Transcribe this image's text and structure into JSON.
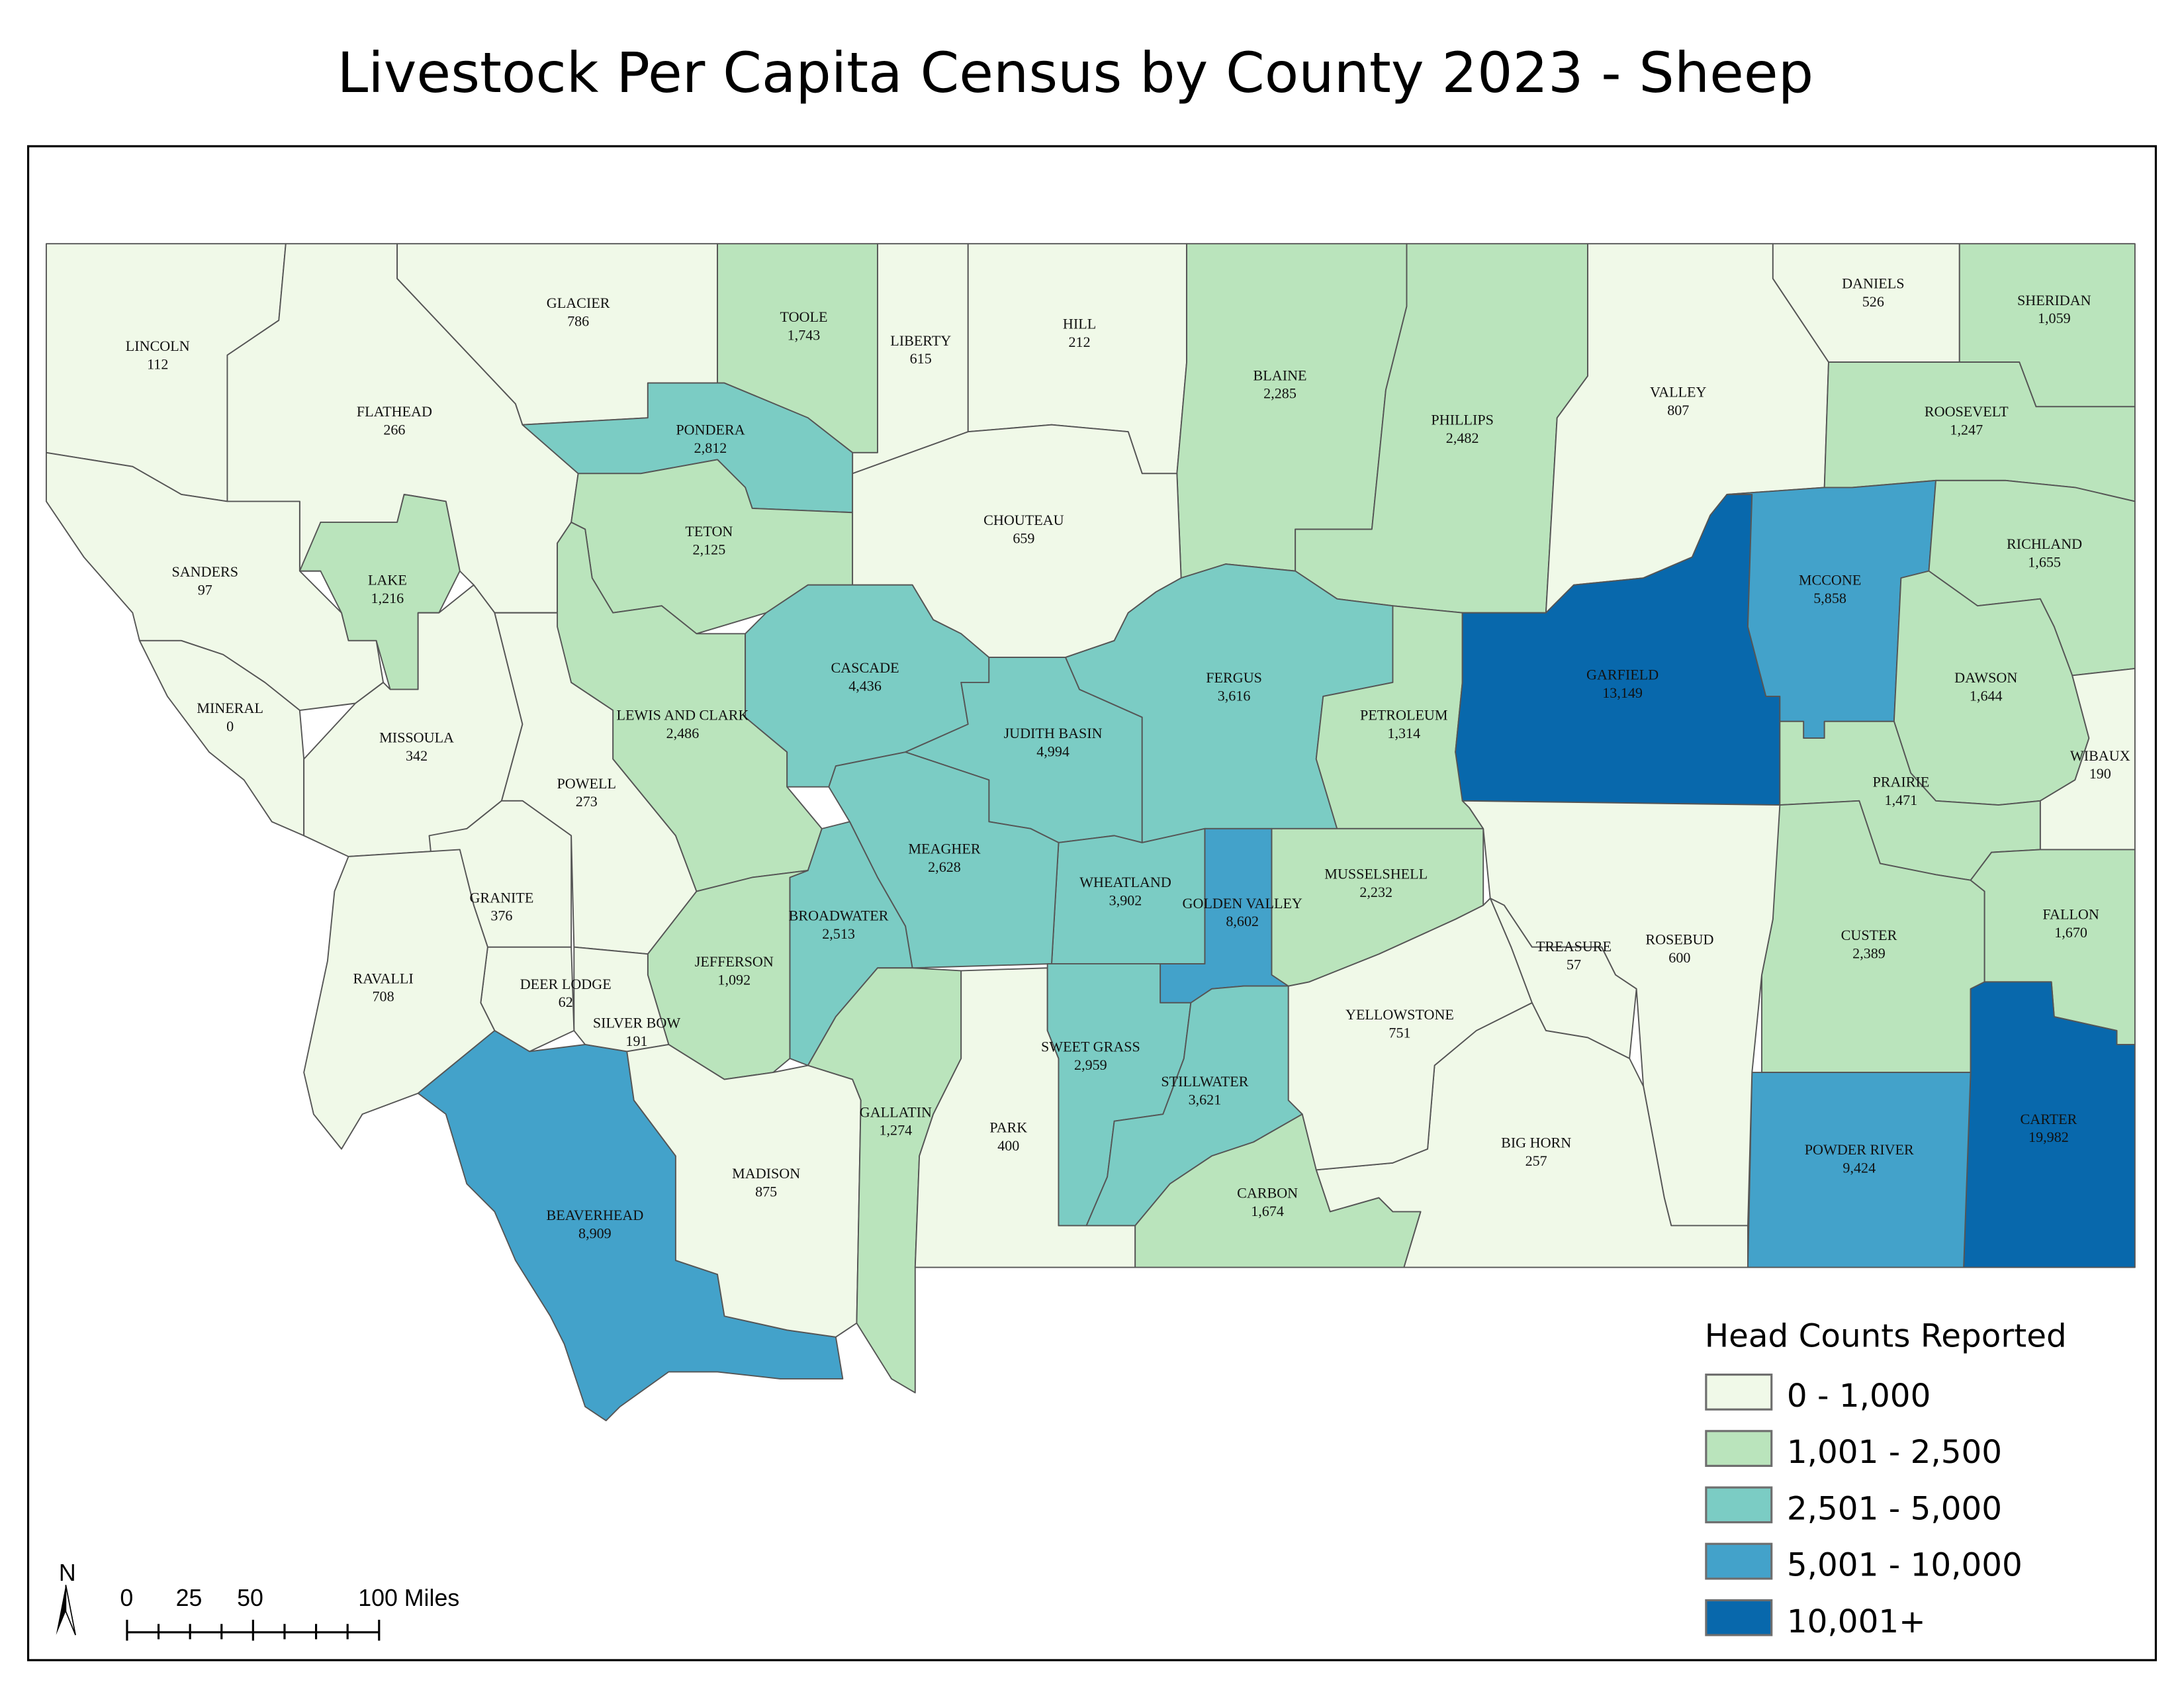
{
  "title": "Livestock Per Capita Census by County 2023 - Sheep",
  "legend": {
    "title": "Head Counts Reported",
    "classes": [
      {
        "label": "0 - 1,000",
        "min": 0,
        "max": 1000,
        "color": "#f0f9e8"
      },
      {
        "label": "1,001 - 2,500",
        "min": 1001,
        "max": 2500,
        "color": "#bae4bc"
      },
      {
        "label": "2,501 - 5,000",
        "min": 2501,
        "max": 5000,
        "color": "#7bccc4"
      },
      {
        "label": "5,001 - 10,000",
        "min": 5001,
        "max": 10000,
        "color": "#43a2ca"
      },
      {
        "label": "10,001+",
        "min": 10001,
        "max": null,
        "color": "#0868ac"
      }
    ]
  },
  "scale_bar": {
    "ticks": [
      "0",
      "25",
      "50",
      "100 Miles"
    ]
  },
  "north_arrow": {
    "label": "N",
    "icon": "north-arrow-icon"
  },
  "counties": [
    {
      "name": "LINCOLN",
      "value": 112,
      "value_label": "112"
    },
    {
      "name": "FLATHEAD",
      "value": 266,
      "value_label": "266"
    },
    {
      "name": "GLACIER",
      "value": 786,
      "value_label": "786"
    },
    {
      "name": "TOOLE",
      "value": 1743,
      "value_label": "1,743"
    },
    {
      "name": "LIBERTY",
      "value": 615,
      "value_label": "615"
    },
    {
      "name": "HILL",
      "value": 212,
      "value_label": "212"
    },
    {
      "name": "BLAINE",
      "value": 2285,
      "value_label": "2,285"
    },
    {
      "name": "PHILLIPS",
      "value": 2482,
      "value_label": "2,482"
    },
    {
      "name": "VALLEY",
      "value": 807,
      "value_label": "807"
    },
    {
      "name": "DANIELS",
      "value": 526,
      "value_label": "526"
    },
    {
      "name": "SHERIDAN",
      "value": 1059,
      "value_label": "1,059"
    },
    {
      "name": "ROOSEVELT",
      "value": 1247,
      "value_label": "1,247"
    },
    {
      "name": "PONDERA",
      "value": 2812,
      "value_label": "2,812"
    },
    {
      "name": "TETON",
      "value": 2125,
      "value_label": "2,125"
    },
    {
      "name": "CHOUTEAU",
      "value": 659,
      "value_label": "659"
    },
    {
      "name": "LAKE",
      "value": 1216,
      "value_label": "1,216"
    },
    {
      "name": "SANDERS",
      "value": 97,
      "value_label": "97"
    },
    {
      "name": "MINERAL",
      "value": 0,
      "value_label": "0"
    },
    {
      "name": "MISSOULA",
      "value": 342,
      "value_label": "342"
    },
    {
      "name": "POWELL",
      "value": 273,
      "value_label": "273"
    },
    {
      "name": "LEWIS AND CLARK",
      "value": 2486,
      "value_label": "2,486"
    },
    {
      "name": "CASCADE",
      "value": 4436,
      "value_label": "4,436"
    },
    {
      "name": "JUDITH BASIN",
      "value": 4994,
      "value_label": "4,994"
    },
    {
      "name": "FERGUS",
      "value": 3616,
      "value_label": "3,616"
    },
    {
      "name": "PETROLEUM",
      "value": 1314,
      "value_label": "1,314"
    },
    {
      "name": "GARFIELD",
      "value": 13149,
      "value_label": "13,149"
    },
    {
      "name": "MCCONE",
      "value": 5858,
      "value_label": "5,858"
    },
    {
      "name": "RICHLAND",
      "value": 1655,
      "value_label": "1,655"
    },
    {
      "name": "DAWSON",
      "value": 1644,
      "value_label": "1,644"
    },
    {
      "name": "WIBAUX",
      "value": 190,
      "value_label": "190"
    },
    {
      "name": "PRAIRIE",
      "value": 1471,
      "value_label": "1,471"
    },
    {
      "name": "CUSTER",
      "value": 2389,
      "value_label": "2,389"
    },
    {
      "name": "FALLON",
      "value": 1670,
      "value_label": "1,670"
    },
    {
      "name": "CARTER",
      "value": 19982,
      "value_label": "19,982"
    },
    {
      "name": "POWDER RIVER",
      "value": 9424,
      "value_label": "9,424"
    },
    {
      "name": "ROSEBUD",
      "value": 600,
      "value_label": "600"
    },
    {
      "name": "TREASURE",
      "value": 57,
      "value_label": "57"
    },
    {
      "name": "BIG HORN",
      "value": 257,
      "value_label": "257"
    },
    {
      "name": "YELLOWSTONE",
      "value": 751,
      "value_label": "751"
    },
    {
      "name": "MUSSELSHELL",
      "value": 2232,
      "value_label": "2,232"
    },
    {
      "name": "GOLDEN VALLEY",
      "value": 8602,
      "value_label": "8,602"
    },
    {
      "name": "WHEATLAND",
      "value": 3902,
      "value_label": "3,902"
    },
    {
      "name": "MEAGHER",
      "value": 2628,
      "value_label": "2,628"
    },
    {
      "name": "BROADWATER",
      "value": 2513,
      "value_label": "2,513"
    },
    {
      "name": "JEFFERSON",
      "value": 1092,
      "value_label": "1,092"
    },
    {
      "name": "SILVER BOW",
      "value": 191,
      "value_label": "191"
    },
    {
      "name": "DEER LODGE",
      "value": 62,
      "value_label": "62"
    },
    {
      "name": "GRANITE",
      "value": 376,
      "value_label": "376"
    },
    {
      "name": "RAVALLI",
      "value": 708,
      "value_label": "708"
    },
    {
      "name": "BEAVERHEAD",
      "value": 8909,
      "value_label": "8,909"
    },
    {
      "name": "MADISON",
      "value": 875,
      "value_label": "875"
    },
    {
      "name": "GALLATIN",
      "value": 1274,
      "value_label": "1,274"
    },
    {
      "name": "PARK",
      "value": 400,
      "value_label": "400"
    },
    {
      "name": "SWEET GRASS",
      "value": 2959,
      "value_label": "2,959"
    },
    {
      "name": "STILLWATER",
      "value": 3621,
      "value_label": "3,621"
    },
    {
      "name": "CARBON",
      "value": 1674,
      "value_label": "1,674"
    }
  ]
}
